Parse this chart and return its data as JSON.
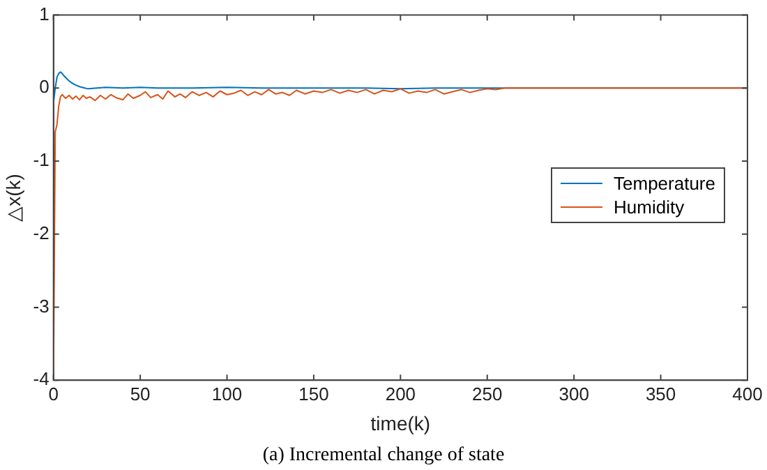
{
  "chart_data": {
    "type": "line",
    "xlabel": "time(k)",
    "ylabel": "△x(k)",
    "annotations": [
      "(a) Incremental change of state"
    ],
    "xlim": [
      0,
      400
    ],
    "xticks": [
      0,
      50,
      100,
      150,
      200,
      250,
      300,
      350,
      400
    ],
    "ylim": [
      -4,
      1
    ],
    "yticks": [
      -4,
      -3,
      -2,
      -1,
      0,
      1
    ],
    "grid": false,
    "legend": "right",
    "marker": "none",
    "line_style": "solid",
    "series": [
      {
        "name": "Temperature",
        "color": "#0072bd",
        "x": [
          0,
          1,
          2,
          3,
          4,
          5,
          6,
          8,
          10,
          12,
          15,
          18,
          20,
          25,
          30,
          40,
          50,
          60,
          80,
          100,
          120,
          150,
          180,
          200,
          220,
          240,
          250,
          260,
          300,
          400
        ],
        "values": [
          -0.2,
          0.0,
          0.15,
          0.2,
          0.22,
          0.2,
          0.17,
          0.12,
          0.08,
          0.05,
          0.02,
          0.0,
          -0.01,
          0.0,
          0.01,
          0.0,
          0.01,
          0.0,
          0.0,
          0.01,
          0.0,
          0.0,
          0.0,
          -0.01,
          0.0,
          0.0,
          0.0,
          0.0,
          0.0,
          0.0
        ]
      },
      {
        "name": "Humidity",
        "color": "#d95319",
        "x": [
          0,
          1,
          2,
          3,
          4,
          5,
          7,
          9,
          11,
          13,
          15,
          17,
          19,
          21,
          24,
          27,
          30,
          33,
          36,
          40,
          43,
          46,
          50,
          53,
          56,
          60,
          63,
          66,
          70,
          73,
          76,
          80,
          84,
          88,
          92,
          96,
          100,
          104,
          108,
          112,
          116,
          120,
          124,
          128,
          132,
          136,
          140,
          145,
          150,
          155,
          160,
          165,
          170,
          175,
          180,
          185,
          190,
          195,
          200,
          205,
          210,
          215,
          220,
          225,
          230,
          235,
          240,
          245,
          250,
          255,
          260,
          270,
          300,
          400
        ],
        "values": [
          -4,
          -0.6,
          -0.5,
          -0.25,
          -0.12,
          -0.09,
          -0.14,
          -0.1,
          -0.15,
          -0.11,
          -0.16,
          -0.1,
          -0.14,
          -0.12,
          -0.17,
          -0.1,
          -0.15,
          -0.09,
          -0.13,
          -0.16,
          -0.08,
          -0.14,
          -0.1,
          -0.05,
          -0.13,
          -0.09,
          -0.15,
          -0.04,
          -0.12,
          -0.08,
          -0.13,
          -0.05,
          -0.1,
          -0.06,
          -0.12,
          -0.04,
          -0.09,
          -0.07,
          -0.03,
          -0.1,
          -0.05,
          -0.09,
          -0.02,
          -0.08,
          -0.06,
          -0.1,
          -0.03,
          -0.08,
          -0.04,
          -0.06,
          -0.02,
          -0.07,
          -0.03,
          -0.06,
          -0.02,
          -0.08,
          -0.03,
          -0.05,
          -0.01,
          -0.07,
          -0.04,
          -0.06,
          -0.02,
          -0.08,
          -0.05,
          -0.02,
          -0.06,
          -0.03,
          -0.01,
          -0.02,
          0.0,
          0.0,
          0.0,
          0.0
        ]
      }
    ]
  }
}
